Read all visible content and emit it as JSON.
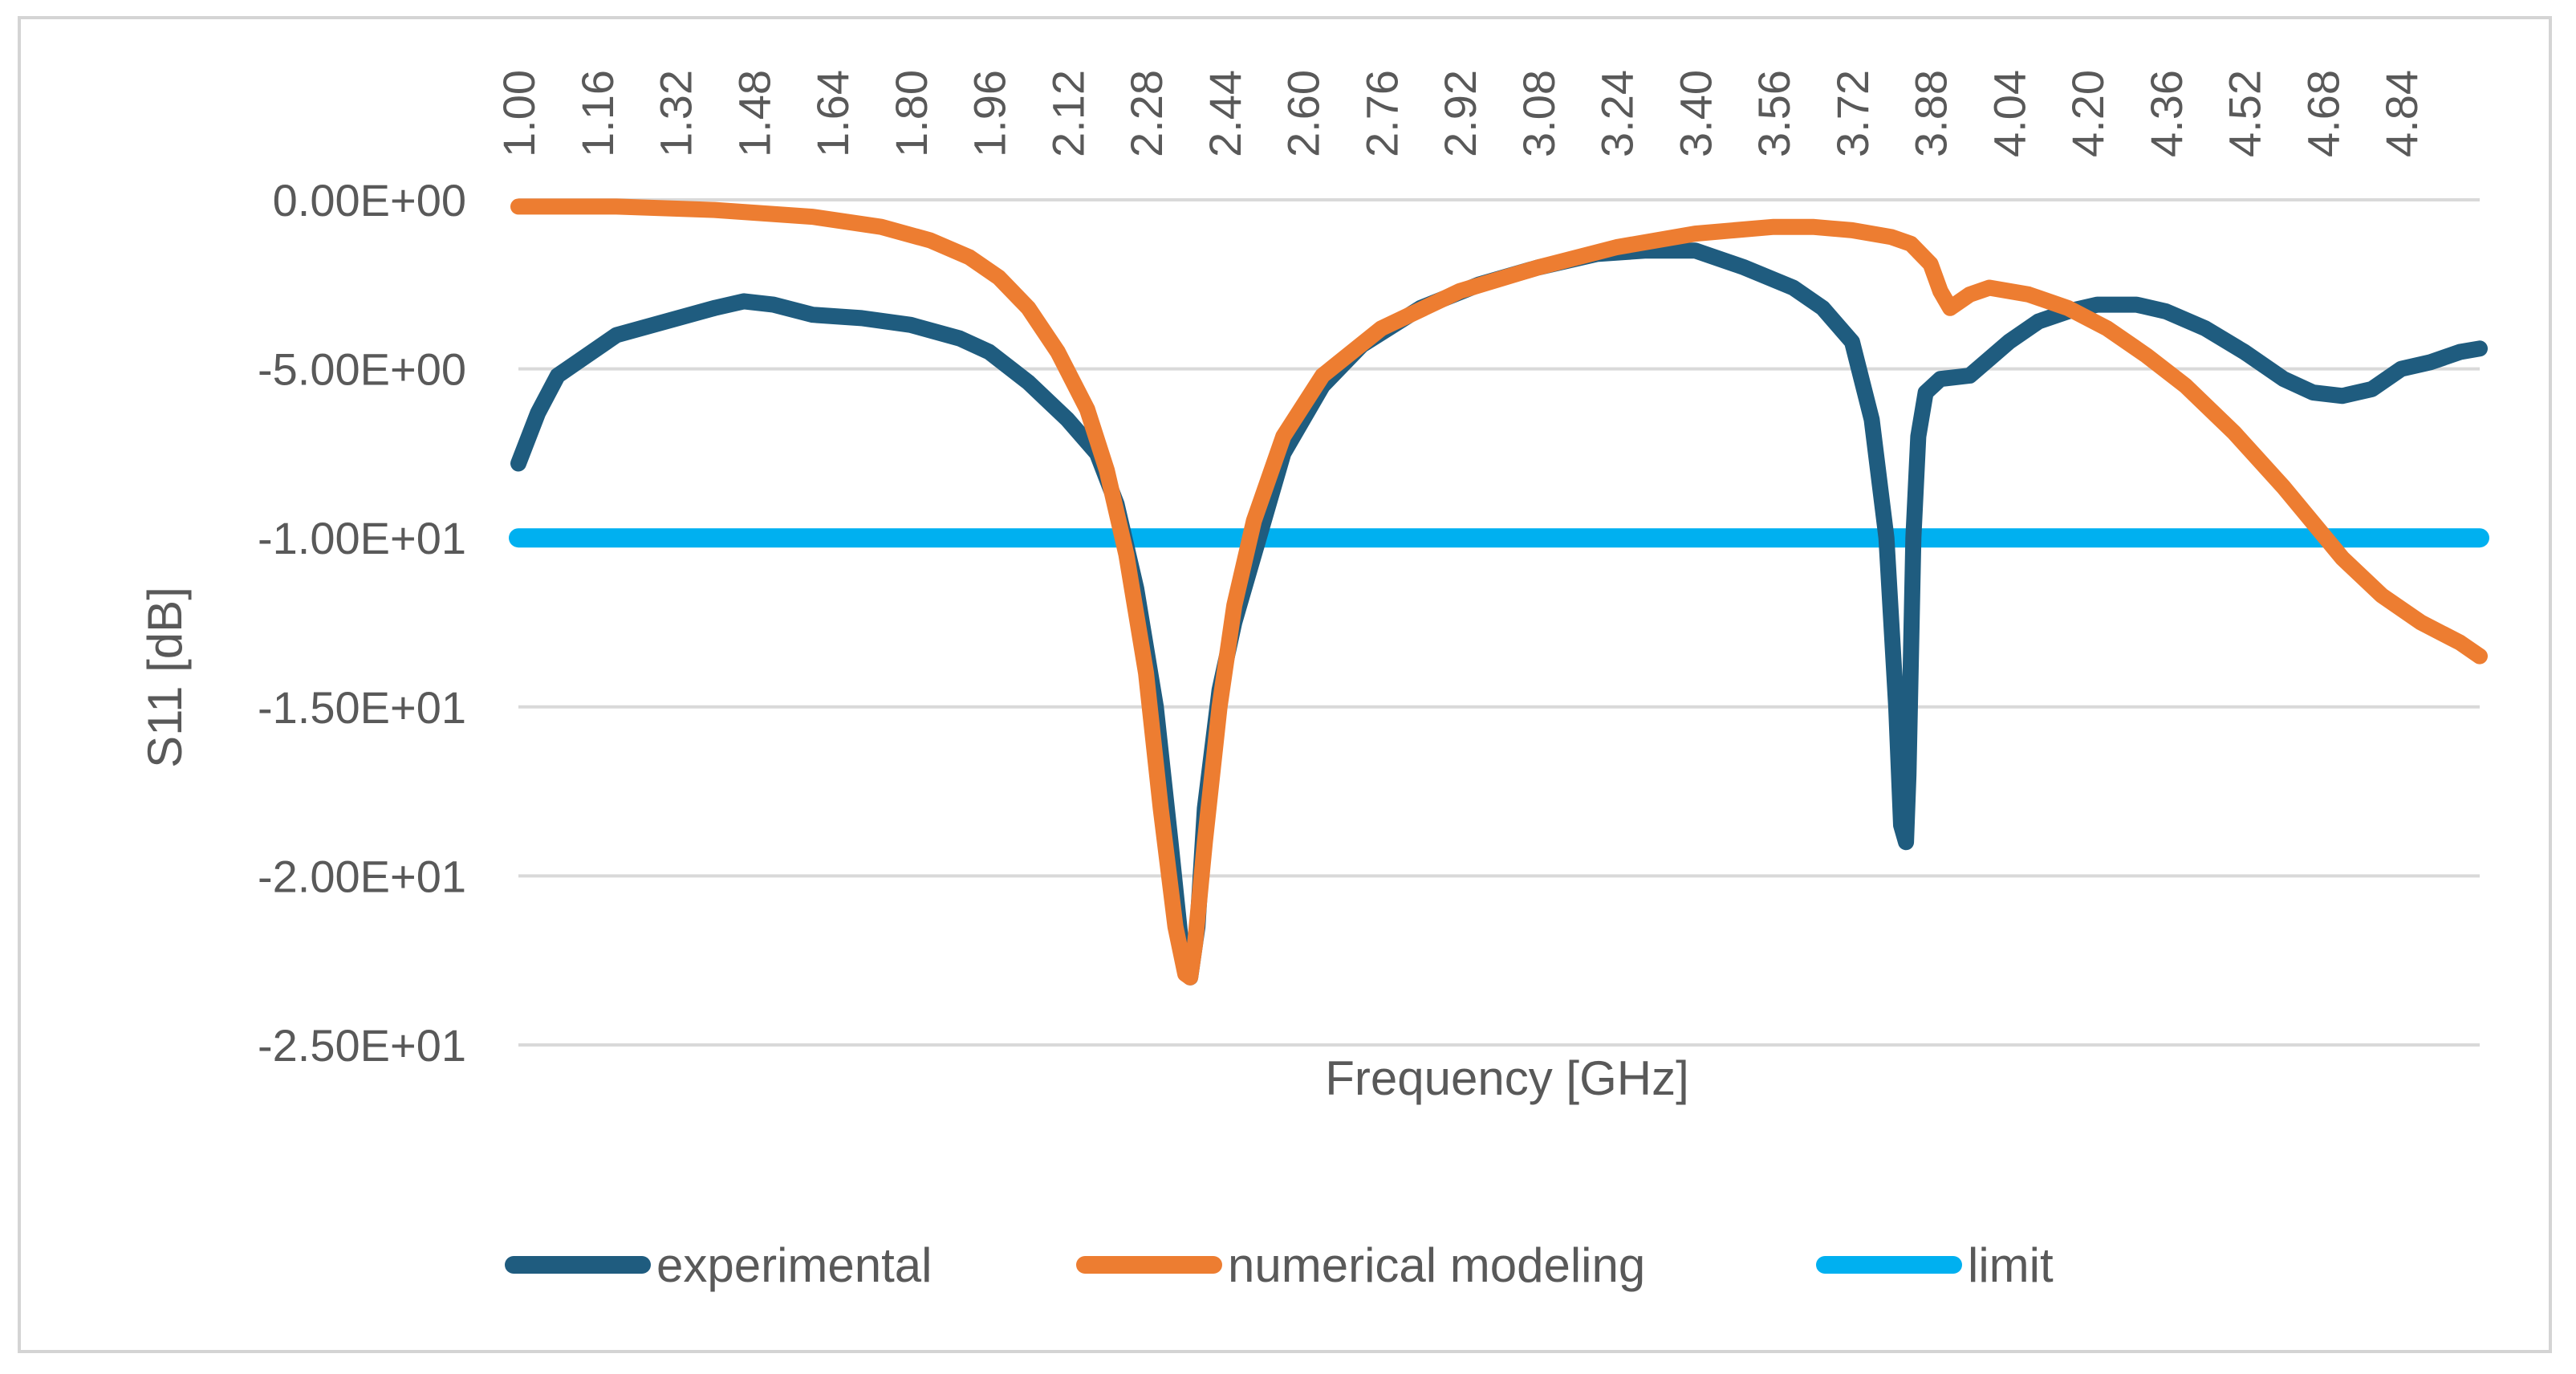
{
  "chart_data": {
    "type": "line",
    "title": "",
    "xlabel": "Frequency [GHz]",
    "ylabel": "S11 [dB]",
    "xlim": [
      1.0,
      5.0
    ],
    "ylim": [
      -25,
      0
    ],
    "x_ticks": [
      "1.00",
      "1.16",
      "1.32",
      "1.48",
      "1.64",
      "1.80",
      "1.96",
      "2.12",
      "2.28",
      "2.44",
      "2.60",
      "2.76",
      "2.92",
      "3.08",
      "3.24",
      "3.40",
      "3.56",
      "3.72",
      "3.88",
      "4.04",
      "4.20",
      "4.36",
      "4.52",
      "4.68",
      "4.84"
    ],
    "y_ticks": [
      {
        "value": 0,
        "label": "0.00E+00"
      },
      {
        "value": -5,
        "label": "-5.00E+00"
      },
      {
        "value": -10,
        "label": "-1.00E+01"
      },
      {
        "value": -15,
        "label": "-1.50E+01"
      },
      {
        "value": -20,
        "label": "-2.00E+01"
      },
      {
        "value": -25,
        "label": "-2.50E+01"
      }
    ],
    "grid": true,
    "legend_position": "bottom",
    "series": [
      {
        "name": "experimental",
        "color": "#1f5c7f",
        "x": [
          1.0,
          1.04,
          1.08,
          1.12,
          1.2,
          1.3,
          1.4,
          1.46,
          1.52,
          1.6,
          1.7,
          1.8,
          1.9,
          1.96,
          2.04,
          2.12,
          2.18,
          2.22,
          2.26,
          2.3,
          2.33,
          2.355,
          2.37,
          2.385,
          2.4,
          2.43,
          2.46,
          2.5,
          2.56,
          2.64,
          2.72,
          2.84,
          2.96,
          3.08,
          3.2,
          3.3,
          3.4,
          3.5,
          3.6,
          3.66,
          3.72,
          3.76,
          3.79,
          3.81,
          3.82,
          3.83,
          3.835,
          3.845,
          3.855,
          3.87,
          3.9,
          3.96,
          4.0,
          4.04,
          4.1,
          4.16,
          4.22,
          4.3,
          4.36,
          4.44,
          4.52,
          4.6,
          4.66,
          4.72,
          4.78,
          4.84,
          4.9,
          4.96,
          5.0
        ],
        "y": [
          -7.8,
          -6.3,
          -5.2,
          -4.8,
          -4.0,
          -3.6,
          -3.2,
          -3.0,
          -3.1,
          -3.4,
          -3.5,
          -3.7,
          -4.1,
          -4.5,
          -5.4,
          -6.5,
          -7.5,
          -9.0,
          -11.5,
          -15.0,
          -19.0,
          -22.5,
          -23.0,
          -21.5,
          -18.0,
          -14.5,
          -12.5,
          -10.5,
          -7.5,
          -5.5,
          -4.3,
          -3.2,
          -2.5,
          -2.0,
          -1.6,
          -1.5,
          -1.5,
          -2.0,
          -2.6,
          -3.2,
          -4.2,
          -6.5,
          -10.0,
          -15.0,
          -18.5,
          -19.0,
          -17.0,
          -10.0,
          -7.0,
          -5.7,
          -5.3,
          -5.2,
          -4.7,
          -4.2,
          -3.6,
          -3.3,
          -3.1,
          -3.1,
          -3.3,
          -3.8,
          -4.5,
          -5.3,
          -5.7,
          -5.8,
          -5.6,
          -5.0,
          -4.8,
          -4.5,
          -4.4
        ]
      },
      {
        "name": "numerical modeling",
        "color": "#ed7d31",
        "x": [
          1.0,
          1.2,
          1.4,
          1.6,
          1.74,
          1.84,
          1.92,
          1.98,
          2.04,
          2.1,
          2.16,
          2.2,
          2.24,
          2.28,
          2.31,
          2.34,
          2.36,
          2.37,
          2.38,
          2.4,
          2.43,
          2.46,
          2.5,
          2.56,
          2.64,
          2.76,
          2.92,
          3.08,
          3.24,
          3.4,
          3.56,
          3.64,
          3.72,
          3.8,
          3.84,
          3.88,
          3.9,
          3.92,
          3.96,
          4.0,
          4.08,
          4.16,
          4.24,
          4.32,
          4.4,
          4.5,
          4.6,
          4.68,
          4.72,
          4.8,
          4.88,
          4.96,
          5.0
        ],
        "y": [
          -0.2,
          -0.2,
          -0.3,
          -0.5,
          -0.8,
          -1.2,
          -1.7,
          -2.3,
          -3.2,
          -4.5,
          -6.2,
          -8.0,
          -10.5,
          -14.0,
          -18.0,
          -21.5,
          -22.9,
          -23.0,
          -22.0,
          -19.0,
          -15.0,
          -12.0,
          -9.5,
          -7.0,
          -5.2,
          -3.8,
          -2.7,
          -2.0,
          -1.4,
          -1.0,
          -0.8,
          -0.8,
          -0.9,
          -1.1,
          -1.3,
          -1.9,
          -2.7,
          -3.2,
          -2.8,
          -2.6,
          -2.8,
          -3.2,
          -3.8,
          -4.6,
          -5.5,
          -6.9,
          -8.5,
          -9.9,
          -10.6,
          -11.7,
          -12.5,
          -13.1,
          -13.5
        ]
      },
      {
        "name": "limit",
        "color": "#00b0f0",
        "x": [
          1.0,
          5.0
        ],
        "y": [
          -10,
          -10
        ]
      }
    ]
  }
}
